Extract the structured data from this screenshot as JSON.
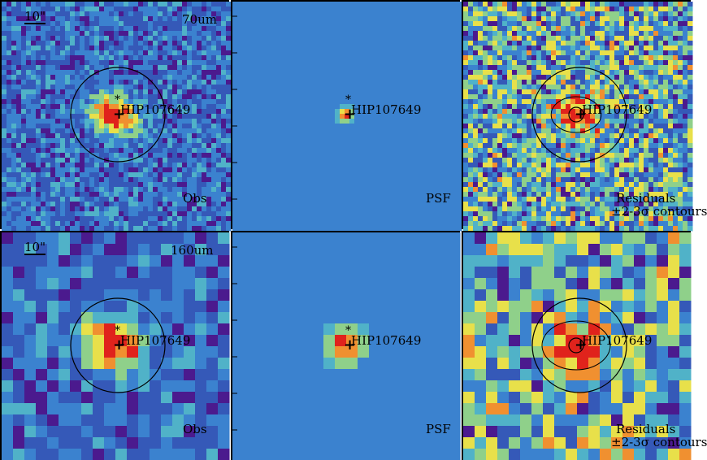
{
  "source_label": "HIP107649",
  "markers": {
    "star_symbol": "*",
    "center_symbol": "+"
  },
  "rows": [
    {
      "band": "70um",
      "scale": "10\"",
      "panels": [
        {
          "kind": "obs",
          "tag": "Obs"
        },
        {
          "kind": "psf",
          "tag": "PSF"
        },
        {
          "kind": "res",
          "tag": "Residuals",
          "tag2": "±2-3σ contours"
        }
      ]
    },
    {
      "band": "160um",
      "scale": "10\"",
      "panels": [
        {
          "kind": "obs",
          "tag": "Obs"
        },
        {
          "kind": "psf",
          "tag": "PSF"
        },
        {
          "kind": "res",
          "tag": "Residuals",
          "tag2": "±2-3σ contours"
        }
      ]
    }
  ],
  "colormap": [
    "#4b1a8e",
    "#3559b8",
    "#3b82cf",
    "#50b2c8",
    "#8fd08a",
    "#e8e04a",
    "#f09030",
    "#e0231c"
  ]
}
